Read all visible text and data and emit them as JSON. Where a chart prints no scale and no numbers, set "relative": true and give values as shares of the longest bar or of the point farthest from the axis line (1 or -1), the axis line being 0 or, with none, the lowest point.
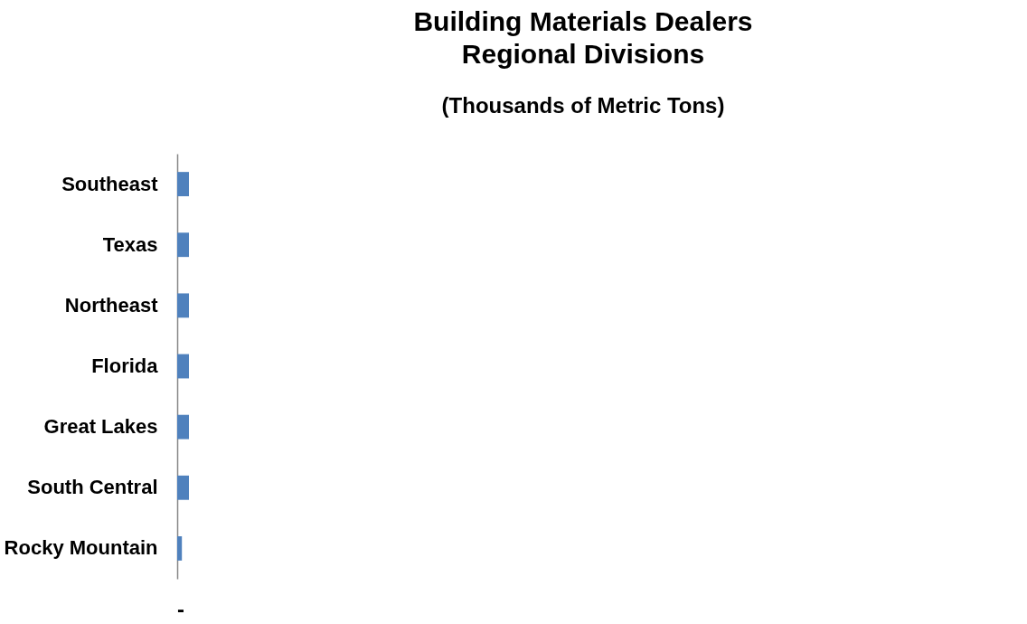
{
  "chart_data": {
    "type": "bar",
    "orientation": "horizontal",
    "relative": true,
    "title": "Building Materials Dealers\nRegional Divisions",
    "subtitle": "(Thousands of Metric Tons)",
    "categories": [
      "Southeast",
      "Texas",
      "Northeast",
      "Florida",
      "Great Lakes",
      "South Central",
      "Rocky Mountain"
    ],
    "values": [
      1,
      1,
      1,
      1,
      1,
      1,
      0.4
    ],
    "color": "#4f81bd",
    "annotations": [
      "-"
    ]
  }
}
